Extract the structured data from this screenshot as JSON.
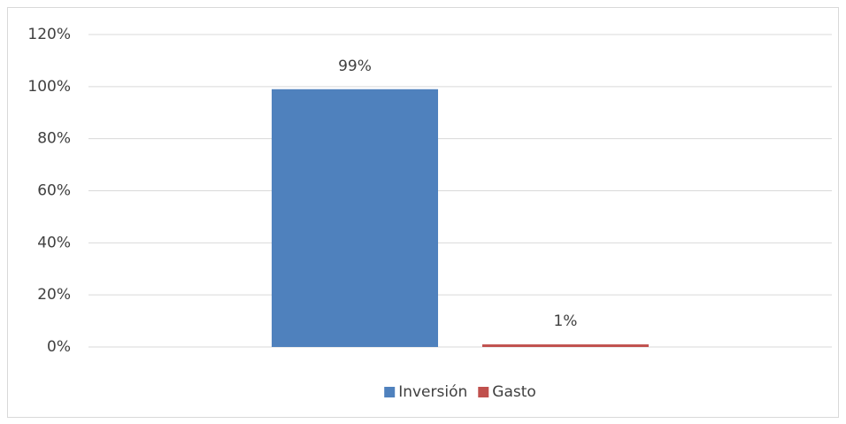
{
  "chart_data": {
    "type": "bar",
    "categories": [
      null
    ],
    "series": [
      {
        "name": "Inversión",
        "color": "#4f81bd",
        "values": [
          99
        ],
        "value_labels": [
          "99%"
        ]
      },
      {
        "name": "Gasto",
        "color": "#c0504d",
        "values": [
          1
        ],
        "value_labels": [
          "1%"
        ]
      }
    ],
    "ylim": [
      0,
      120
    ],
    "yticks": [
      {
        "value": 0,
        "label": "0%"
      },
      {
        "value": 20,
        "label": "20%"
      },
      {
        "value": 40,
        "label": "40%"
      },
      {
        "value": 60,
        "label": "60%"
      },
      {
        "value": 80,
        "label": "80%"
      },
      {
        "value": 100,
        "label": "100%"
      },
      {
        "value": 120,
        "label": "120%"
      }
    ],
    "grid": true,
    "legend": "bottom"
  }
}
